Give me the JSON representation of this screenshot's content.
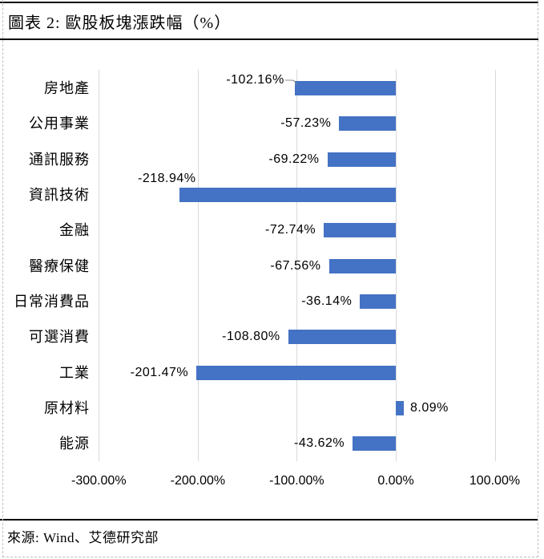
{
  "header": {
    "title": "圖表 2: 歐股板塊漲跌幅（%）"
  },
  "footer": {
    "source": "來源: Wind、艾德研究部"
  },
  "chart_data": {
    "type": "bar",
    "orientation": "horizontal",
    "title": "圖表 2: 歐股板塊漲跌幅（%）",
    "value_unit": "%",
    "categories": [
      "房地產",
      "公用事業",
      "通訊服務",
      "資訊技術",
      "金融",
      "醫療保健",
      "日常消費品",
      "可選消費",
      "工業",
      "原材料",
      "能源"
    ],
    "values": [
      -102.16,
      -57.23,
      -69.22,
      -218.94,
      -72.74,
      -67.56,
      -36.14,
      -108.8,
      -201.47,
      8.09,
      -43.62
    ],
    "data_labels": [
      "-102.16%",
      "-57.23%",
      "-69.22%",
      "-218.94%",
      "-72.74%",
      "-67.56%",
      "-36.14%",
      "-108.80%",
      "-201.47%",
      "8.09%",
      "-43.62%"
    ],
    "x_axis": {
      "min": -300,
      "max": 100,
      "ticks": [
        -300,
        -200,
        -100,
        0,
        100
      ],
      "tick_labels": [
        "-300.00%",
        "-200.00%",
        "-100.00%",
        "0.00%",
        "100.00%"
      ]
    },
    "grid": "vertical-only",
    "legend": "none",
    "bar_color": "#4472C4",
    "gridline_color": "#D9D9D9",
    "label_color": "#000000"
  }
}
